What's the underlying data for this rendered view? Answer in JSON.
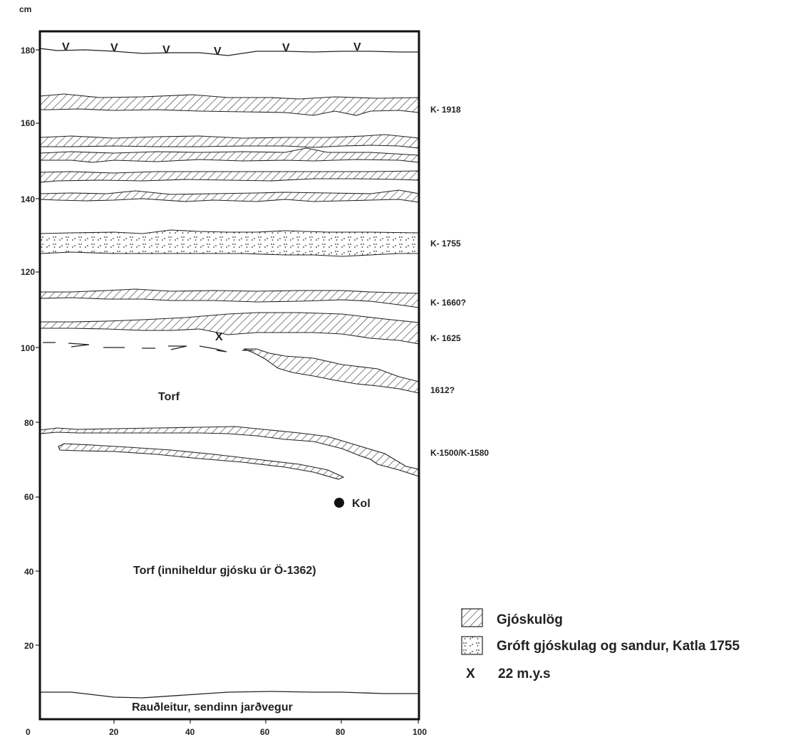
{
  "axes": {
    "y_unit": "cm",
    "y_ticks": [
      "180",
      "160",
      "140",
      "120",
      "100",
      "80",
      "60",
      "40",
      "20"
    ],
    "x_ticks": [
      "0",
      "20",
      "40",
      "60",
      "80",
      "100"
    ],
    "y_range": [
      0,
      185
    ],
    "x_range": [
      0,
      100
    ]
  },
  "layer_labels": [
    "K- 1918",
    "K- 1755",
    "K- 1660?",
    "K- 1625",
    "1612?",
    "K-1500/K-1580"
  ],
  "annotations": {
    "torf": "Torf",
    "torf_lower": "Torf (inniheldur gjósku úr Ö-1362)",
    "kol": "Kol",
    "bottom_soil": "Rauðleitur, sendinn jarðvegur",
    "x_mark": "X",
    "v_mark": "V"
  },
  "legend": {
    "hatched": "Gjóskulög",
    "dotted": "Gróft gjóskulag og sandur, Katla 1755",
    "x_symbol": "X",
    "x_text": "22 m.y.s"
  },
  "colors": {
    "ink": "#222222",
    "background": "#ffffff"
  }
}
